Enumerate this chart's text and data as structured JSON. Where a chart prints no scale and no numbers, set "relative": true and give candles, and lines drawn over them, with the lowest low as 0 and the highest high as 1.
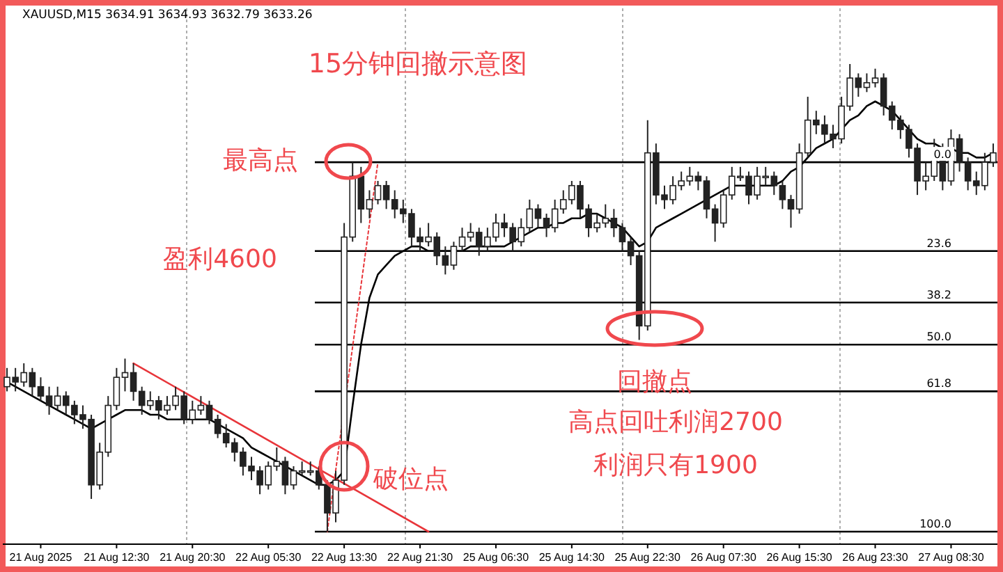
{
  "chart_data": {
    "type": "candlestick",
    "relative": true,
    "title": "15分钟回撤示意图",
    "subtitle": "XAUUSD,M15 3634.91 3634.93 3632.79 3633.26",
    "categories": [
      null,
      null,
      null,
      null,
      "21 Aug 2025",
      null,
      null,
      null,
      null,
      null,
      null,
      null,
      null,
      "21 Aug 12:30",
      null,
      null,
      null,
      null,
      null,
      null,
      null,
      null,
      "21 Aug 20:30",
      null,
      null,
      null,
      null,
      null,
      null,
      null,
      null,
      "22 Aug 05:30",
      null,
      null,
      null,
      null,
      null,
      null,
      null,
      null,
      "22 Aug 13:30",
      null,
      null,
      null,
      null,
      null,
      null,
      null,
      null,
      "22 Aug 21:30",
      null,
      null,
      null,
      null,
      null,
      null,
      null,
      null,
      "25 Aug 06:30",
      null,
      null,
      null,
      null,
      null,
      null,
      null,
      null,
      "25 Aug 14:30",
      null,
      null,
      null,
      null,
      null,
      null,
      null,
      null,
      "25 Aug 22:30",
      null,
      null,
      null,
      null,
      null,
      null,
      null,
      null,
      "26 Aug 07:30",
      null,
      null,
      null,
      null,
      null,
      null,
      null,
      null,
      "26 Aug 15:30",
      null,
      null,
      null,
      null,
      null,
      null,
      null,
      null,
      "26 Aug 23:30",
      null,
      null,
      null,
      null,
      null,
      null,
      null,
      null,
      "27 Aug 08:30",
      null,
      null,
      null,
      null,
      null
    ],
    "grid": false,
    "series": [
      {
        "color": "#222222",
        "ohlc": [
          [
            0.31,
            0.35,
            0.3,
            0.33
          ],
          [
            0.33,
            0.35,
            0.3,
            0.32
          ],
          [
            0.32,
            0.36,
            0.31,
            0.34
          ],
          [
            0.34,
            0.35,
            0.29,
            0.31
          ],
          [
            0.31,
            0.33,
            0.28,
            0.29
          ],
          [
            0.29,
            0.31,
            0.25,
            0.27
          ],
          [
            0.27,
            0.31,
            0.26,
            0.29
          ],
          [
            0.29,
            0.3,
            0.25,
            0.27
          ],
          [
            0.27,
            0.28,
            0.23,
            0.25
          ],
          [
            0.25,
            0.27,
            0.22,
            0.24
          ],
          [
            0.24,
            0.25,
            0.07,
            0.1
          ],
          [
            0.1,
            0.19,
            0.09,
            0.17
          ],
          [
            0.17,
            0.29,
            0.16,
            0.27
          ],
          [
            0.27,
            0.35,
            0.26,
            0.33
          ],
          [
            0.33,
            0.37,
            0.3,
            0.34
          ],
          [
            0.34,
            0.36,
            0.28,
            0.3
          ],
          [
            0.3,
            0.31,
            0.25,
            0.27
          ],
          [
            0.27,
            0.3,
            0.26,
            0.28
          ],
          [
            0.28,
            0.29,
            0.24,
            0.26
          ],
          [
            0.26,
            0.29,
            0.25,
            0.27
          ],
          [
            0.27,
            0.31,
            0.26,
            0.29
          ],
          [
            0.29,
            0.3,
            0.23,
            0.24
          ],
          [
            0.24,
            0.28,
            0.23,
            0.26
          ],
          [
            0.26,
            0.29,
            0.25,
            0.27
          ],
          [
            0.27,
            0.28,
            0.23,
            0.24
          ],
          [
            0.24,
            0.25,
            0.2,
            0.21
          ],
          [
            0.21,
            0.23,
            0.18,
            0.19
          ],
          [
            0.19,
            0.2,
            0.15,
            0.17
          ],
          [
            0.17,
            0.18,
            0.12,
            0.14
          ],
          [
            0.14,
            0.16,
            0.11,
            0.13
          ],
          [
            0.13,
            0.14,
            0.08,
            0.1
          ],
          [
            0.1,
            0.15,
            0.09,
            0.14
          ],
          [
            0.14,
            0.18,
            0.13,
            0.15
          ],
          [
            0.15,
            0.16,
            0.08,
            0.1
          ],
          [
            0.1,
            0.14,
            0.09,
            0.13
          ],
          [
            0.13,
            0.15,
            0.12,
            0.13
          ],
          [
            0.13,
            0.15,
            0.12,
            0.13
          ],
          [
            0.13,
            0.14,
            0.09,
            0.1
          ],
          [
            0.1,
            0.11,
            0,
            0.04
          ],
          [
            0.04,
            0.13,
            0.02,
            0.11
          ],
          [
            0.11,
            0.66,
            0.1,
            0.63
          ],
          [
            0.63,
            0.79,
            0.62,
            0.76
          ],
          [
            0.76,
            0.78,
            0.66,
            0.69
          ],
          [
            0.69,
            0.73,
            0.67,
            0.71
          ],
          [
            0.71,
            0.75,
            0.7,
            0.74
          ],
          [
            0.74,
            0.75,
            0.69,
            0.71
          ],
          [
            0.71,
            0.73,
            0.67,
            0.69
          ],
          [
            0.69,
            0.71,
            0.66,
            0.68
          ],
          [
            0.68,
            0.69,
            0.61,
            0.63
          ],
          [
            0.63,
            0.65,
            0.6,
            0.62
          ],
          [
            0.62,
            0.66,
            0.61,
            0.63
          ],
          [
            0.63,
            0.64,
            0.57,
            0.59
          ],
          [
            0.59,
            0.61,
            0.55,
            0.57
          ],
          [
            0.57,
            0.62,
            0.56,
            0.61
          ],
          [
            0.61,
            0.65,
            0.6,
            0.63
          ],
          [
            0.63,
            0.66,
            0.62,
            0.64
          ],
          [
            0.64,
            0.65,
            0.59,
            0.61
          ],
          [
            0.61,
            0.65,
            0.6,
            0.63
          ],
          [
            0.63,
            0.68,
            0.62,
            0.66
          ],
          [
            0.66,
            0.68,
            0.63,
            0.65
          ],
          [
            0.65,
            0.66,
            0.6,
            0.62
          ],
          [
            0.62,
            0.67,
            0.61,
            0.65
          ],
          [
            0.65,
            0.71,
            0.64,
            0.69
          ],
          [
            0.69,
            0.7,
            0.65,
            0.67
          ],
          [
            0.67,
            0.68,
            0.63,
            0.65
          ],
          [
            0.65,
            0.71,
            0.64,
            0.69
          ],
          [
            0.69,
            0.73,
            0.68,
            0.71
          ],
          [
            0.71,
            0.75,
            0.7,
            0.74
          ],
          [
            0.74,
            0.75,
            0.67,
            0.69
          ],
          [
            0.69,
            0.7,
            0.63,
            0.65
          ],
          [
            0.65,
            0.68,
            0.64,
            0.66
          ],
          [
            0.66,
            0.7,
            0.65,
            0.67
          ],
          [
            0.67,
            0.69,
            0.63,
            0.65
          ],
          [
            0.65,
            0.66,
            0.6,
            0.62
          ],
          [
            0.62,
            0.63,
            0.57,
            0.59
          ],
          [
            0.59,
            0.6,
            0.41,
            0.44
          ],
          [
            0.44,
            0.88,
            0.43,
            0.81
          ],
          [
            0.81,
            0.83,
            0.7,
            0.72
          ],
          [
            0.72,
            0.74,
            0.69,
            0.71
          ],
          [
            0.71,
            0.76,
            0.7,
            0.74
          ],
          [
            0.74,
            0.77,
            0.73,
            0.75
          ],
          [
            0.75,
            0.78,
            0.74,
            0.76
          ],
          [
            0.76,
            0.77,
            0.73,
            0.75
          ],
          [
            0.75,
            0.76,
            0.67,
            0.69
          ],
          [
            0.69,
            0.7,
            0.62,
            0.66
          ],
          [
            0.66,
            0.73,
            0.65,
            0.72
          ],
          [
            0.72,
            0.78,
            0.71,
            0.76
          ],
          [
            0.76,
            0.78,
            0.75,
            0.76
          ],
          [
            0.76,
            0.77,
            0.7,
            0.72
          ],
          [
            0.72,
            0.78,
            0.71,
            0.76
          ],
          [
            0.76,
            0.78,
            0.74,
            0.76
          ],
          [
            0.76,
            0.77,
            0.72,
            0.74
          ],
          [
            0.74,
            0.75,
            0.69,
            0.71
          ],
          [
            0.71,
            0.72,
            0.65,
            0.69
          ],
          [
            0.69,
            0.83,
            0.68,
            0.81
          ],
          [
            0.81,
            0.93,
            0.8,
            0.88
          ],
          [
            0.88,
            0.9,
            0.85,
            0.87
          ],
          [
            0.87,
            0.89,
            0.83,
            0.85
          ],
          [
            0.85,
            0.87,
            0.82,
            0.84
          ],
          [
            0.84,
            0.93,
            0.83,
            0.91
          ],
          [
            0.91,
            1,
            0.9,
            0.97
          ],
          [
            0.97,
            0.98,
            0.93,
            0.95
          ],
          [
            0.95,
            0.98,
            0.94,
            0.96
          ],
          [
            0.96,
            0.99,
            0.95,
            0.97
          ],
          [
            0.97,
            0.98,
            0.89,
            0.91
          ],
          [
            0.91,
            0.92,
            0.86,
            0.88
          ],
          [
            0.88,
            0.89,
            0.84,
            0.86
          ],
          [
            0.86,
            0.87,
            0.8,
            0.82
          ],
          [
            0.82,
            0.83,
            0.72,
            0.75
          ],
          [
            0.75,
            0.79,
            0.73,
            0.76
          ],
          [
            0.76,
            0.84,
            0.75,
            0.82
          ],
          [
            0.82,
            0.83,
            0.73,
            0.75
          ],
          [
            0.75,
            0.86,
            0.74,
            0.84
          ],
          [
            0.84,
            0.85,
            0.77,
            0.79
          ],
          [
            0.79,
            0.8,
            0.73,
            0.75
          ],
          [
            0.75,
            0.77,
            0.72,
            0.74
          ],
          [
            0.74,
            0.81,
            0.73,
            0.79
          ],
          [
            0.79,
            0.83,
            0.78,
            0.81
          ]
        ]
      },
      {
        "type": "line",
        "color": "#000000",
        "line_style": "solid",
        "values": [
          0.32,
          0.31,
          0.3,
          0.29,
          0.28,
          0.27,
          0.26,
          0.25,
          0.24,
          0.23,
          0.22,
          0.23,
          0.24,
          0.25,
          0.26,
          0.26,
          0.26,
          0.25,
          0.25,
          0.24,
          0.24,
          0.24,
          0.24,
          0.24,
          0.24,
          0.23,
          0.22,
          0.21,
          0.2,
          0.18,
          0.17,
          0.16,
          0.15,
          0.14,
          0.13,
          0.12,
          0.11,
          0.1,
          0.1,
          0.11,
          0.13,
          0.27,
          0.4,
          0.5,
          0.55,
          0.57,
          0.59,
          0.6,
          0.61,
          0.61,
          0.6,
          0.6,
          0.6,
          0.6,
          0.6,
          0.61,
          0.61,
          0.61,
          0.61,
          0.61,
          0.62,
          0.63,
          0.64,
          0.65,
          0.65,
          0.66,
          0.66,
          0.67,
          0.67,
          0.68,
          0.68,
          0.67,
          0.66,
          0.65,
          0.63,
          0.61,
          0.62,
          0.65,
          0.66,
          0.67,
          0.68,
          0.69,
          0.7,
          0.71,
          0.72,
          0.73,
          0.74,
          0.74,
          0.74,
          0.74,
          0.74,
          0.74,
          0.75,
          0.77,
          0.78,
          0.8,
          0.82,
          0.83,
          0.84,
          0.86,
          0.88,
          0.89,
          0.91,
          0.92,
          0.91,
          0.9,
          0.88,
          0.86,
          0.84,
          0.83,
          0.83,
          0.82,
          0.82,
          0.81,
          0.81,
          0.8,
          0.8,
          0.81
        ]
      },
      {
        "type": "line",
        "color": "#e8353a",
        "line_style": "solid",
        "values": [
          null,
          null,
          null,
          null,
          null,
          null,
          null,
          null,
          null,
          null,
          null,
          null,
          null,
          null,
          null,
          0.36,
          null,
          null,
          null,
          null,
          null,
          null,
          null,
          null,
          null,
          null,
          null,
          null,
          null,
          null,
          null,
          null,
          null,
          null,
          null,
          null,
          null,
          null,
          null,
          null,
          null,
          null,
          null,
          null,
          null,
          null,
          null,
          null,
          null,
          null,
          0,
          null,
          null,
          null,
          null,
          null,
          null,
          null,
          null,
          null,
          null,
          null,
          null,
          null,
          null,
          null,
          null,
          null,
          null,
          null,
          null,
          null,
          null,
          null,
          null,
          null,
          null,
          null,
          null,
          null,
          null,
          null,
          null,
          null,
          null,
          null,
          null,
          null,
          null,
          null,
          null,
          null,
          null,
          null,
          null,
          null,
          null,
          null,
          null,
          null,
          null,
          null,
          null,
          null,
          null,
          null,
          null,
          null,
          null,
          null,
          null,
          null,
          null,
          null,
          null,
          null,
          null,
          null
        ]
      },
      {
        "type": "line",
        "color": "#e8353a",
        "line_style": "dotted",
        "values": [
          null,
          null,
          null,
          null,
          null,
          null,
          null,
          null,
          null,
          null,
          null,
          null,
          null,
          null,
          null,
          null,
          null,
          null,
          null,
          null,
          null,
          null,
          null,
          null,
          null,
          null,
          null,
          null,
          null,
          null,
          null,
          null,
          null,
          null,
          null,
          null,
          null,
          null,
          0,
          null,
          null,
          null,
          null,
          null,
          0.79,
          null,
          null,
          null,
          null,
          null,
          null,
          null,
          null,
          null,
          null,
          null,
          null,
          null,
          null,
          null,
          null,
          null,
          null,
          null,
          null,
          null,
          null,
          null,
          null,
          null,
          null,
          null,
          null,
          null,
          null,
          null,
          null,
          null,
          null,
          null,
          null,
          null,
          null,
          null,
          null,
          null,
          null,
          null,
          null,
          null,
          null,
          null,
          null,
          null,
          null,
          null,
          null,
          null,
          null,
          null,
          null,
          null,
          null,
          null,
          null,
          null,
          null,
          null,
          null,
          null,
          null,
          null,
          null,
          null,
          null,
          null,
          null,
          null
        ]
      }
    ],
    "ref_lines": [
      {
        "axis": "y",
        "value": 0.79,
        "color": "#000000"
      },
      {
        "axis": "y",
        "value": 0.6,
        "color": "#000000"
      },
      {
        "axis": "y",
        "value": 0.49,
        "color": "#000000"
      },
      {
        "axis": "y",
        "value": 0.4,
        "color": "#000000"
      },
      {
        "axis": "y",
        "value": 0.3,
        "color": "#000000"
      },
      {
        "axis": "y",
        "value": 0,
        "color": "#000000"
      }
    ],
    "annotations": [
      "最高点",
      "盈利4600",
      "破位点",
      "回撤点",
      "高点回吐利润2700",
      "利润只有1900",
      {
        "text": "0.0",
        "y": 0.79
      },
      {
        "text": "23.6",
        "y": 0.6
      },
      {
        "text": "38.2",
        "y": 0.49
      },
      {
        "text": "50.0",
        "y": 0.4
      },
      {
        "text": "61.8",
        "y": 0.3
      },
      {
        "text": "100.0",
        "y": 0
      }
    ]
  }
}
